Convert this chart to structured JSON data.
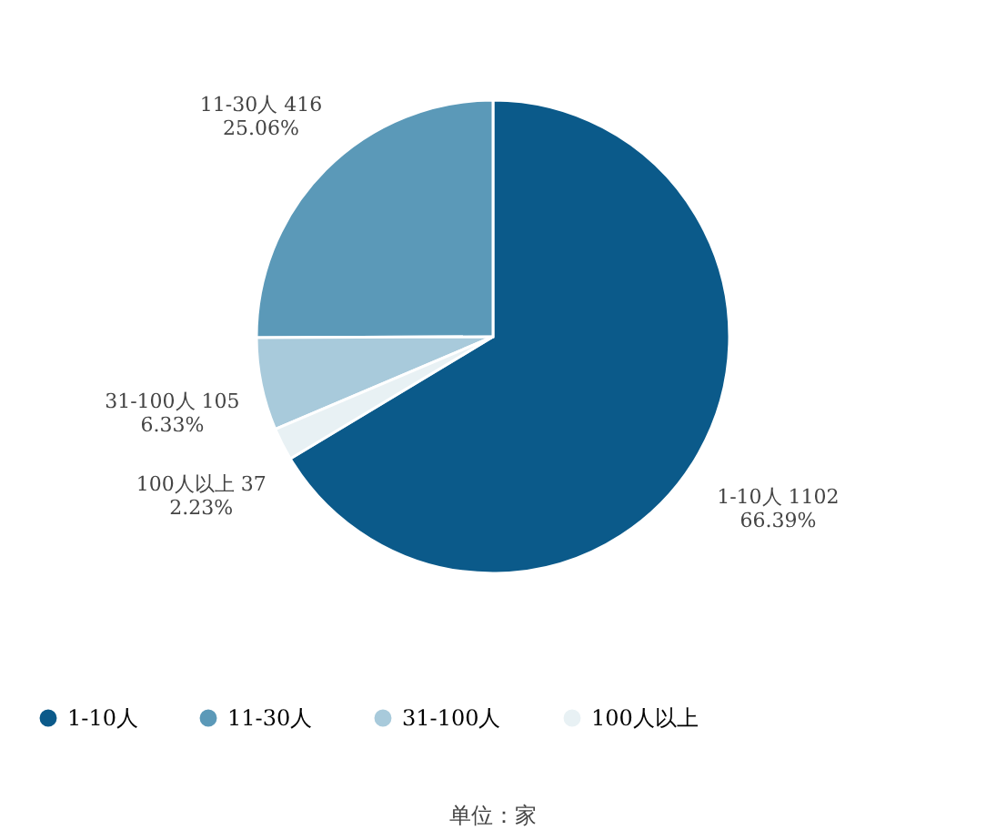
{
  "chart_data": {
    "type": "pie",
    "categories": [
      "1-10人",
      "11-30人",
      "31-100人",
      "100人以上"
    ],
    "values": [
      1102,
      416,
      105,
      37
    ],
    "colors": [
      "#0b5a8a",
      "#5b99b8",
      "#a8cadb",
      "#e8f1f4"
    ],
    "value_labels": [
      "1-10人 1102\n66.39%",
      "11-30人 416\n25.06%",
      "31-100人 105\n6.33%",
      "100人以上 37\n2.23%"
    ],
    "legend": "bottom",
    "annotations": [
      "单位：家"
    ]
  }
}
